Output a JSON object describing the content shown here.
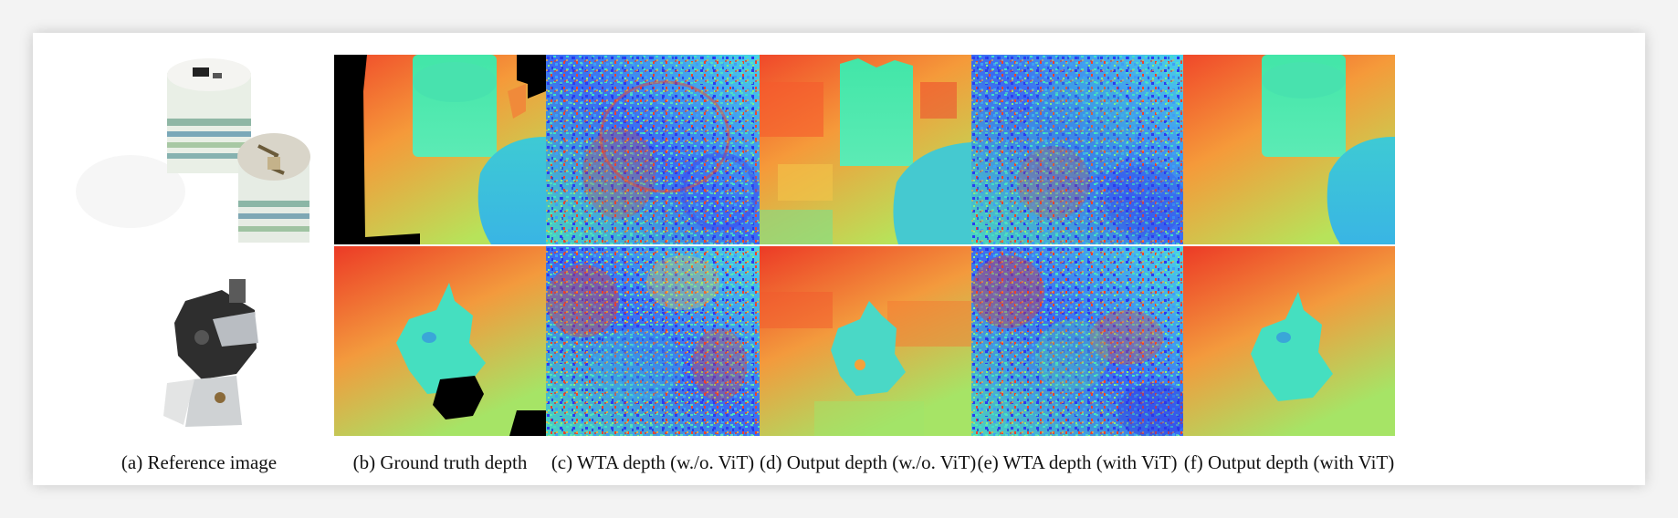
{
  "figure": {
    "panels": [
      {
        "id": "a",
        "caption": "(a) Reference image"
      },
      {
        "id": "b",
        "caption": "(b) Ground truth depth"
      },
      {
        "id": "c",
        "caption": "(c) WTA depth (w./o. ViT)"
      },
      {
        "id": "d",
        "caption": "(d) Output depth (w./o. ViT)"
      },
      {
        "id": "e",
        "caption": "(e) WTA depth (with ViT)"
      },
      {
        "id": "f",
        "caption": "(f) Output depth (with ViT)"
      }
    ],
    "rows": [
      "cups-scene",
      "kettle-scene"
    ]
  }
}
